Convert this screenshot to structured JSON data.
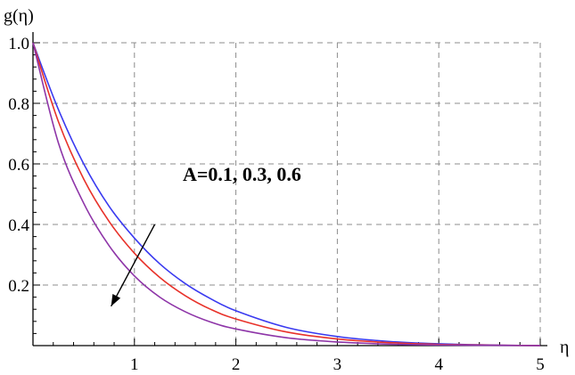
{
  "chart_data": {
    "type": "line",
    "xlabel": "η",
    "ylabel": "g(η)",
    "xlim": [
      0,
      5
    ],
    "ylim": [
      0,
      1.0
    ],
    "grid": true,
    "x_ticks": [
      "1",
      "2",
      "3",
      "4",
      "5"
    ],
    "y_ticks": [
      "0.2",
      "0.4",
      "0.6",
      "0.8",
      "1.0"
    ],
    "annotation": {
      "text": "A=0.1, 0.3, 0.6",
      "arrow_from": [
        1.2,
        0.4
      ],
      "arrow_to": [
        0.77,
        0.13
      ]
    },
    "series": [
      {
        "color": "#3a3af0",
        "x": [
          0,
          0.25,
          0.5,
          0.75,
          1.0,
          1.25,
          1.5,
          1.75,
          2.0,
          2.5,
          3.0,
          3.5,
          4.0,
          4.5,
          5.0
        ],
        "y": [
          1.0,
          0.78,
          0.6,
          0.46,
          0.355,
          0.27,
          0.205,
          0.155,
          0.115,
          0.06,
          0.03,
          0.014,
          0.006,
          0.002,
          0.0
        ]
      },
      {
        "color": "#e8322a",
        "x": [
          0,
          0.25,
          0.5,
          0.75,
          1.0,
          1.25,
          1.5,
          1.75,
          2.0,
          2.5,
          3.0,
          3.5,
          4.0,
          4.5,
          5.0
        ],
        "y": [
          1.0,
          0.74,
          0.55,
          0.41,
          0.305,
          0.225,
          0.165,
          0.12,
          0.088,
          0.045,
          0.022,
          0.01,
          0.004,
          0.0015,
          0.0
        ]
      },
      {
        "color": "#8e35a8",
        "x": [
          0,
          0.25,
          0.5,
          0.75,
          1.0,
          1.25,
          1.5,
          1.75,
          2.0,
          2.5,
          3.0,
          3.5,
          4.0,
          4.5,
          5.0
        ],
        "y": [
          1.0,
          0.67,
          0.47,
          0.33,
          0.23,
          0.16,
          0.112,
          0.078,
          0.055,
          0.026,
          0.012,
          0.005,
          0.002,
          0.0008,
          0.0
        ]
      }
    ]
  }
}
